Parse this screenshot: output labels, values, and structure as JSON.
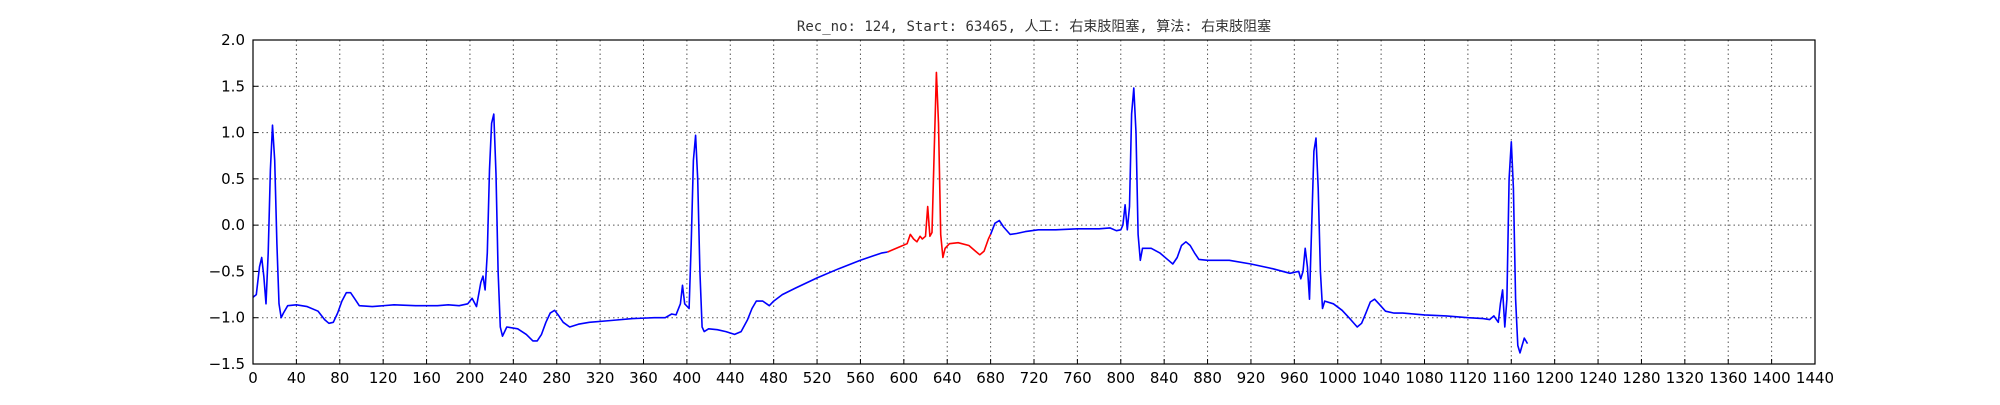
{
  "chart_data": {
    "type": "line",
    "title": "Rec_no: 124, Start: 63465, 人工: 右束肢阻塞, 算法: 右束肢阻塞",
    "xlabel": "",
    "ylabel": "",
    "xlim": [
      0,
      1440
    ],
    "ylim": [
      -1.5,
      2.0
    ],
    "x_ticks": [
      0,
      40,
      80,
      120,
      160,
      200,
      240,
      280,
      320,
      360,
      400,
      440,
      480,
      520,
      560,
      600,
      640,
      680,
      720,
      760,
      800,
      840,
      880,
      920,
      960,
      1000,
      1040,
      1080,
      1120,
      1160,
      1200,
      1240,
      1280,
      1320,
      1360,
      1400,
      1440
    ],
    "x_tick_labels": [
      "0",
      "40",
      "80",
      "120",
      "160",
      "200",
      "240",
      "280",
      "320",
      "360",
      "400",
      "440",
      "480",
      "520",
      "560",
      "600",
      "640",
      "680",
      "720",
      "760",
      "800",
      "840",
      "880",
      "920",
      "960",
      "1000",
      "1040",
      "1080",
      "1120",
      "1160",
      "1200",
      "1240",
      "1280",
      "1320",
      "1360",
      "1400",
      "1440"
    ],
    "y_ticks": [
      -1.5,
      -1.0,
      -0.5,
      0.0,
      0.5,
      1.0,
      1.5,
      2.0
    ],
    "y_tick_labels": [
      "−1.5",
      "−1.0",
      "−0.5",
      "0.0",
      "0.5",
      "1.0",
      "1.5",
      "2.0"
    ],
    "grid": true,
    "series": [
      {
        "name": "ecg-before",
        "color": "#0000ff",
        "points": [
          [
            0,
            -0.78
          ],
          [
            3,
            -0.75
          ],
          [
            6,
            -0.45
          ],
          [
            8,
            -0.35
          ],
          [
            10,
            -0.55
          ],
          [
            12,
            -0.85
          ],
          [
            14,
            -0.3
          ],
          [
            16,
            0.6
          ],
          [
            18,
            1.08
          ],
          [
            20,
            0.7
          ],
          [
            22,
            -0.2
          ],
          [
            24,
            -0.85
          ],
          [
            26,
            -1.0
          ],
          [
            28,
            -0.95
          ],
          [
            32,
            -0.87
          ],
          [
            40,
            -0.86
          ],
          [
            50,
            -0.88
          ],
          [
            60,
            -0.93
          ],
          [
            66,
            -1.02
          ],
          [
            70,
            -1.06
          ],
          [
            74,
            -1.05
          ],
          [
            78,
            -0.95
          ],
          [
            82,
            -0.82
          ],
          [
            86,
            -0.73
          ],
          [
            90,
            -0.73
          ],
          [
            94,
            -0.8
          ],
          [
            98,
            -0.87
          ],
          [
            110,
            -0.88
          ],
          [
            130,
            -0.86
          ],
          [
            150,
            -0.87
          ],
          [
            170,
            -0.87
          ],
          [
            180,
            -0.86
          ],
          [
            190,
            -0.87
          ],
          [
            198,
            -0.85
          ],
          [
            202,
            -0.79
          ],
          [
            206,
            -0.88
          ],
          [
            210,
            -0.62
          ],
          [
            212,
            -0.55
          ],
          [
            214,
            -0.7
          ],
          [
            216,
            -0.3
          ],
          [
            218,
            0.6
          ],
          [
            220,
            1.1
          ],
          [
            222,
            1.2
          ],
          [
            224,
            0.55
          ],
          [
            226,
            -0.5
          ],
          [
            228,
            -1.1
          ],
          [
            230,
            -1.2
          ],
          [
            234,
            -1.1
          ],
          [
            244,
            -1.12
          ],
          [
            252,
            -1.18
          ],
          [
            258,
            -1.25
          ],
          [
            262,
            -1.25
          ],
          [
            266,
            -1.18
          ],
          [
            270,
            -1.05
          ],
          [
            274,
            -0.95
          ],
          [
            278,
            -0.92
          ],
          [
            282,
            -0.98
          ],
          [
            286,
            -1.05
          ],
          [
            292,
            -1.1
          ],
          [
            300,
            -1.07
          ],
          [
            310,
            -1.05
          ],
          [
            330,
            -1.03
          ],
          [
            350,
            -1.01
          ],
          [
            370,
            -1.0
          ],
          [
            380,
            -1.0
          ],
          [
            386,
            -0.96
          ],
          [
            390,
            -0.97
          ],
          [
            394,
            -0.85
          ],
          [
            396,
            -0.65
          ],
          [
            398,
            -0.85
          ],
          [
            402,
            -0.9
          ],
          [
            404,
            -0.2
          ],
          [
            406,
            0.7
          ],
          [
            408,
            0.97
          ],
          [
            410,
            0.5
          ],
          [
            412,
            -0.5
          ],
          [
            414,
            -1.1
          ],
          [
            416,
            -1.15
          ],
          [
            420,
            -1.12
          ],
          [
            428,
            -1.13
          ],
          [
            436,
            -1.15
          ],
          [
            444,
            -1.18
          ],
          [
            450,
            -1.15
          ],
          [
            456,
            -1.02
          ],
          [
            460,
            -0.9
          ],
          [
            464,
            -0.82
          ],
          [
            470,
            -0.82
          ],
          [
            476,
            -0.87
          ],
          [
            480,
            -0.82
          ],
          [
            488,
            -0.75
          ],
          [
            500,
            -0.68
          ],
          [
            520,
            -0.57
          ],
          [
            540,
            -0.47
          ],
          [
            560,
            -0.38
          ],
          [
            572,
            -0.33
          ],
          [
            580,
            -0.3
          ],
          [
            585,
            -0.29
          ]
        ]
      },
      {
        "name": "ecg-highlight",
        "color": "#ff0000",
        "points": [
          [
            585,
            -0.29
          ],
          [
            595,
            -0.24
          ],
          [
            603,
            -0.2
          ],
          [
            606,
            -0.1
          ],
          [
            609,
            -0.15
          ],
          [
            612,
            -0.18
          ],
          [
            615,
            -0.12
          ],
          [
            617,
            -0.15
          ],
          [
            620,
            -0.12
          ],
          [
            622,
            0.2
          ],
          [
            624,
            -0.12
          ],
          [
            626,
            -0.08
          ],
          [
            628,
            0.8
          ],
          [
            630,
            1.65
          ],
          [
            632,
            1.1
          ],
          [
            634,
            -0.1
          ],
          [
            636,
            -0.35
          ],
          [
            638,
            -0.25
          ],
          [
            642,
            -0.2
          ],
          [
            650,
            -0.19
          ],
          [
            660,
            -0.22
          ],
          [
            666,
            -0.28
          ],
          [
            670,
            -0.32
          ],
          [
            674,
            -0.28
          ],
          [
            678,
            -0.15
          ],
          [
            680,
            -0.1
          ]
        ]
      },
      {
        "name": "ecg-after",
        "color": "#0000ff",
        "points": [
          [
            680,
            -0.1
          ],
          [
            684,
            0.02
          ],
          [
            688,
            0.05
          ],
          [
            692,
            -0.02
          ],
          [
            698,
            -0.1
          ],
          [
            704,
            -0.09
          ],
          [
            712,
            -0.07
          ],
          [
            724,
            -0.05
          ],
          [
            740,
            -0.05
          ],
          [
            760,
            -0.04
          ],
          [
            780,
            -0.04
          ],
          [
            790,
            -0.03
          ],
          [
            796,
            -0.06
          ],
          [
            800,
            -0.05
          ],
          [
            802,
            0.0
          ],
          [
            804,
            0.22
          ],
          [
            806,
            -0.05
          ],
          [
            808,
            0.2
          ],
          [
            810,
            1.2
          ],
          [
            812,
            1.48
          ],
          [
            814,
            1.0
          ],
          [
            816,
            -0.1
          ],
          [
            818,
            -0.38
          ],
          [
            820,
            -0.25
          ],
          [
            828,
            -0.25
          ],
          [
            836,
            -0.3
          ],
          [
            844,
            -0.38
          ],
          [
            848,
            -0.42
          ],
          [
            852,
            -0.35
          ],
          [
            856,
            -0.22
          ],
          [
            860,
            -0.18
          ],
          [
            864,
            -0.22
          ],
          [
            868,
            -0.3
          ],
          [
            872,
            -0.37
          ],
          [
            880,
            -0.38
          ],
          [
            900,
            -0.38
          ],
          [
            920,
            -0.42
          ],
          [
            940,
            -0.47
          ],
          [
            956,
            -0.52
          ],
          [
            964,
            -0.5
          ],
          [
            966,
            -0.58
          ],
          [
            968,
            -0.5
          ],
          [
            970,
            -0.25
          ],
          [
            972,
            -0.45
          ],
          [
            974,
            -0.8
          ],
          [
            976,
            0.0
          ],
          [
            978,
            0.8
          ],
          [
            980,
            0.94
          ],
          [
            982,
            0.4
          ],
          [
            984,
            -0.5
          ],
          [
            986,
            -0.9
          ],
          [
            988,
            -0.82
          ],
          [
            996,
            -0.85
          ],
          [
            1004,
            -0.92
          ],
          [
            1012,
            -1.02
          ],
          [
            1018,
            -1.1
          ],
          [
            1022,
            -1.06
          ],
          [
            1026,
            -0.95
          ],
          [
            1030,
            -0.83
          ],
          [
            1034,
            -0.8
          ],
          [
            1038,
            -0.85
          ],
          [
            1044,
            -0.93
          ],
          [
            1052,
            -0.95
          ],
          [
            1060,
            -0.95
          ],
          [
            1080,
            -0.97
          ],
          [
            1100,
            -0.98
          ],
          [
            1120,
            -1.0
          ],
          [
            1134,
            -1.01
          ],
          [
            1140,
            -1.02
          ],
          [
            1144,
            -0.98
          ],
          [
            1148,
            -1.05
          ],
          [
            1150,
            -0.85
          ],
          [
            1152,
            -0.7
          ],
          [
            1154,
            -1.1
          ],
          [
            1156,
            -0.8
          ],
          [
            1158,
            0.5
          ],
          [
            1160,
            0.9
          ],
          [
            1162,
            0.4
          ],
          [
            1164,
            -0.8
          ],
          [
            1166,
            -1.3
          ],
          [
            1168,
            -1.38
          ],
          [
            1170,
            -1.3
          ],
          [
            1172,
            -1.22
          ],
          [
            1175,
            -1.28
          ]
        ]
      }
    ]
  }
}
